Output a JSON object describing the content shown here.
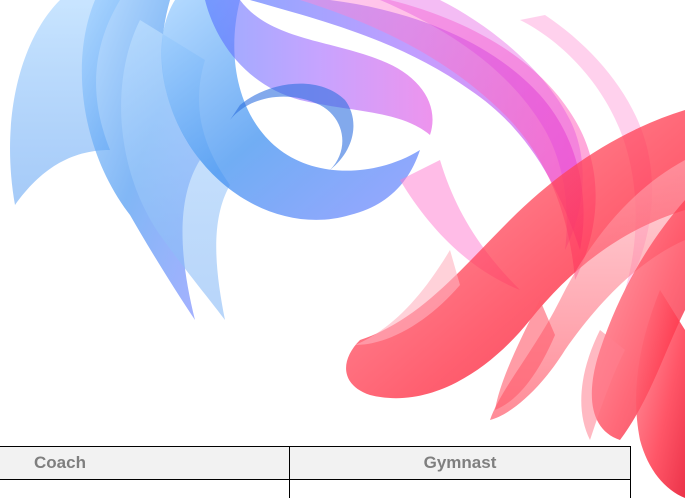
{
  "artwork": {
    "icon": "abstract-swirl-graphic",
    "colors": {
      "blue": "#3a8ef0",
      "violet": "#8a5cff",
      "magenta": "#e040e0",
      "pink": "#ff4fb0",
      "red": "#ff3344"
    }
  },
  "signature_table": {
    "columns": [
      {
        "label": "Coach"
      },
      {
        "label": "Gymnast"
      }
    ],
    "rows": [
      {
        "coach": "",
        "gymnast": ""
      }
    ],
    "header_text_color": "#7f7f7f",
    "header_background": "#f2f2f2"
  }
}
